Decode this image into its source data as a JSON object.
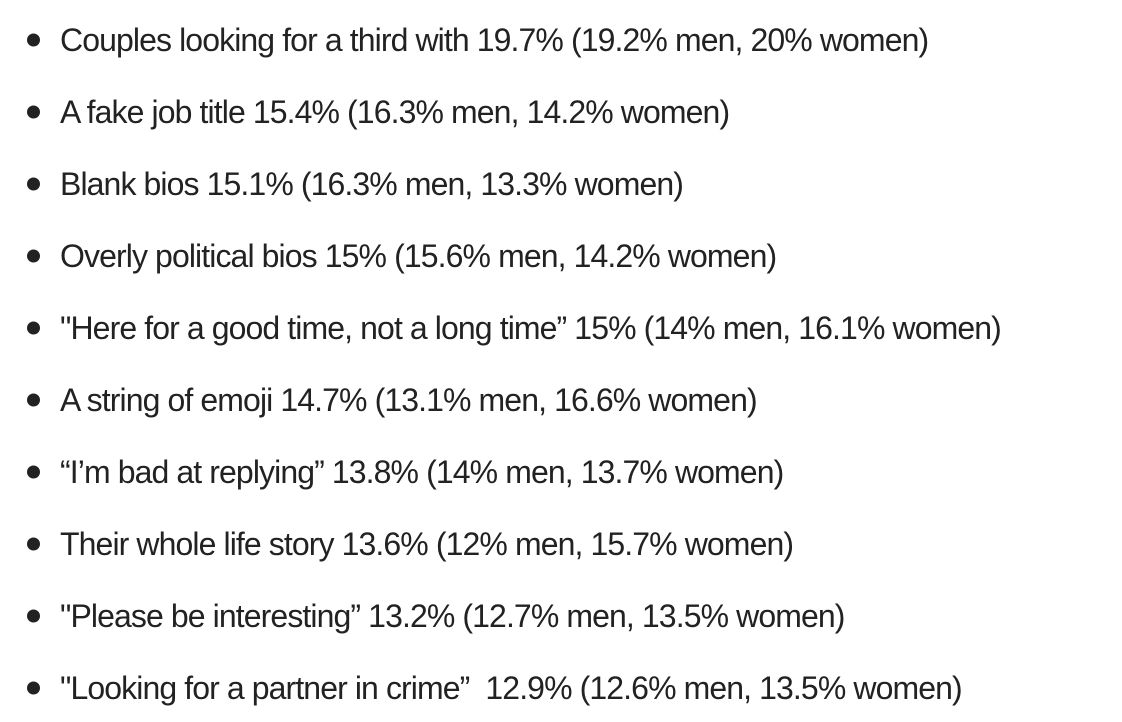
{
  "list": {
    "items": [
      "Couples looking for a third with 19.7% (19.2% men, 20% women)",
      "A fake job title 15.4% (16.3% men, 14.2% women)",
      "Blank bios 15.1% (16.3% men, 13.3% women)",
      "Overly political bios 15% (15.6% men, 14.2% women)",
      "\"Here for a good time, not a long time” 15% (14% men, 16.1% women)",
      "A string of emoji 14.7% (13.1% men, 16.6% women)",
      "“I’m bad at replying” 13.8% (14% men, 13.7% women)",
      "Their whole life story 13.6% (12% men, 15.7% women)",
      "\"Please be interesting” 13.2% (12.7% men, 13.5% women)",
      "\"Looking for a partner in crime”  12.9% (12.6% men, 13.5% women)"
    ]
  }
}
